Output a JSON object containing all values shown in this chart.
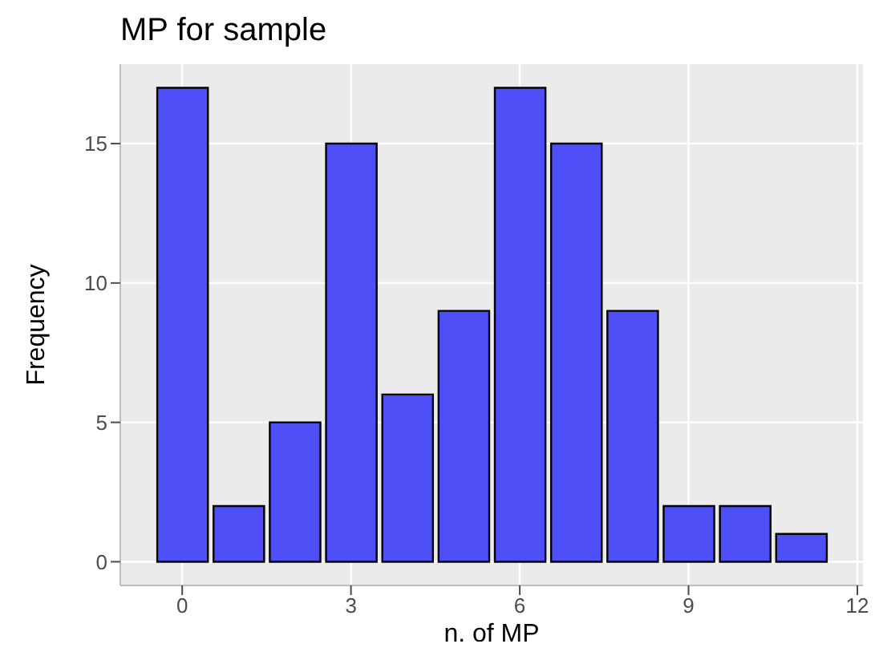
{
  "chart_data": {
    "type": "histogram",
    "title": "MP for sample",
    "xlabel": "n. of MP",
    "ylabel": "Frequency",
    "bins": [
      -0.5,
      0.5,
      1.5,
      2.5,
      3.5,
      4.5,
      5.5,
      6.5,
      7.5,
      8.5,
      9.5,
      10.5,
      11.5
    ],
    "values": [
      17,
      2,
      5,
      15,
      6,
      9,
      17,
      15,
      9,
      2,
      2,
      1
    ],
    "color": "#4f4ff8",
    "xlim": [
      -1.1,
      12.1
    ],
    "xticks": [
      0,
      3,
      6,
      9,
      12
    ],
    "ylim": [
      -0.85,
      17.85
    ],
    "yticks": [
      0,
      5,
      10,
      15
    ],
    "grid": true
  }
}
